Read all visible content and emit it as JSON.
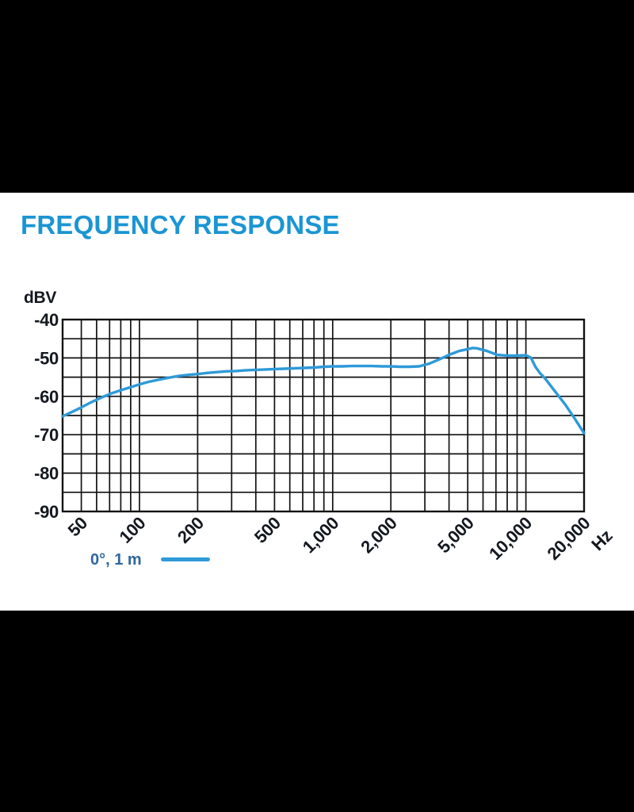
{
  "page": {
    "background_color": "#ffffff",
    "letterbox_color": "#000000"
  },
  "title": {
    "text": "FREQUENCY RESPONSE",
    "color": "#1b95d4"
  },
  "chart_data": {
    "type": "line",
    "title": "FREQUENCY RESPONSE",
    "ylabel": "dBV",
    "x_unit_label": "Hz",
    "x_scale": "log",
    "xlim": [
      40,
      20000
    ],
    "ylim": [
      -90,
      -40
    ],
    "grid": true,
    "grid_color": "#121212",
    "axis_label_color": "#14181f",
    "y_tick_values": [
      -40,
      -50,
      -60,
      -70,
      -80,
      -90
    ],
    "y_tick_labels": [
      "-40",
      "-50",
      "-60",
      "-70",
      "-80",
      "-90"
    ],
    "y_minor_gridlines": [
      -45,
      -55,
      -65,
      -75,
      -85
    ],
    "x_tick_values": [
      50,
      100,
      200,
      500,
      1000,
      2000,
      5000,
      10000,
      20000
    ],
    "x_tick_labels": [
      "50",
      "100",
      "200",
      "500",
      "1,000",
      "2,000",
      "5,000",
      "10,000",
      "20,000"
    ],
    "x_gridlines": [
      50,
      60,
      70,
      80,
      90,
      100,
      200,
      300,
      400,
      500,
      600,
      700,
      800,
      900,
      1000,
      2000,
      3000,
      4000,
      5000,
      6000,
      7000,
      8000,
      9000,
      10000
    ],
    "legend_position": "bottom-left",
    "series": [
      {
        "name": "0°, 1 m",
        "color": "#2e9ad8",
        "points": [
          [
            40,
            -65.2
          ],
          [
            45,
            -64.0
          ],
          [
            50,
            -62.9
          ],
          [
            56,
            -61.6
          ],
          [
            63,
            -60.4
          ],
          [
            71,
            -59.3
          ],
          [
            80,
            -58.4
          ],
          [
            90,
            -57.6
          ],
          [
            100,
            -56.9
          ],
          [
            112,
            -56.2
          ],
          [
            125,
            -55.7
          ],
          [
            140,
            -55.2
          ],
          [
            160,
            -54.7
          ],
          [
            180,
            -54.4
          ],
          [
            200,
            -54.2
          ],
          [
            224,
            -53.9
          ],
          [
            250,
            -53.7
          ],
          [
            280,
            -53.5
          ],
          [
            315,
            -53.4
          ],
          [
            355,
            -53.2
          ],
          [
            400,
            -53.1
          ],
          [
            450,
            -53.0
          ],
          [
            500,
            -52.9
          ],
          [
            560,
            -52.8
          ],
          [
            630,
            -52.7
          ],
          [
            710,
            -52.6
          ],
          [
            800,
            -52.5
          ],
          [
            900,
            -52.3
          ],
          [
            1000,
            -52.2
          ],
          [
            1120,
            -52.2
          ],
          [
            1250,
            -52.1
          ],
          [
            1400,
            -52.1
          ],
          [
            1600,
            -52.1
          ],
          [
            1800,
            -52.2
          ],
          [
            2000,
            -52.2
          ],
          [
            2240,
            -52.3
          ],
          [
            2500,
            -52.3
          ],
          [
            2800,
            -52.2
          ],
          [
            3150,
            -51.5
          ],
          [
            3550,
            -50.4
          ],
          [
            4000,
            -49.2
          ],
          [
            4500,
            -48.2
          ],
          [
            5000,
            -47.7
          ],
          [
            5300,
            -47.4
          ],
          [
            5600,
            -47.5
          ],
          [
            6300,
            -48.2
          ],
          [
            7100,
            -49.2
          ],
          [
            8000,
            -49.4
          ],
          [
            9000,
            -49.4
          ],
          [
            10000,
            -49.3
          ],
          [
            10600,
            -49.9
          ],
          [
            11200,
            -52.3
          ],
          [
            11800,
            -53.9
          ],
          [
            12500,
            -55.2
          ],
          [
            14000,
            -58.4
          ],
          [
            16000,
            -62.2
          ],
          [
            18000,
            -66.0
          ],
          [
            20000,
            -69.6
          ]
        ]
      }
    ]
  },
  "legend": {
    "label": "0°, 1 m",
    "text_color": "#2e679f",
    "swatch_color": "#2e9ad8"
  }
}
